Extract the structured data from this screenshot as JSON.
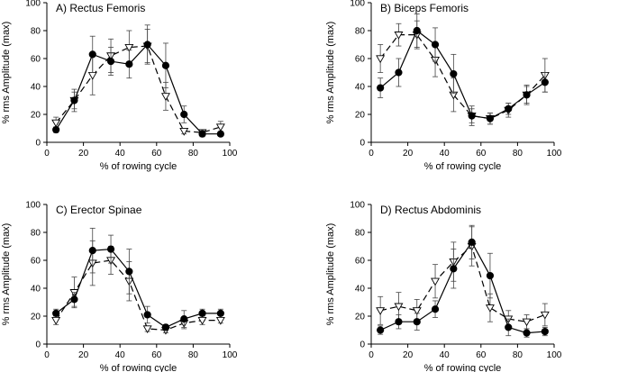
{
  "chart_data": [
    {
      "type": "line",
      "title": "A)  Rectus Femoris",
      "xlabel": "% of rowing cycle",
      "ylabel": "% rms Amplitude (max)",
      "xlim": [
        0,
        100
      ],
      "ylim": [
        0,
        100
      ],
      "xticks": [
        0,
        20,
        40,
        60,
        80,
        100
      ],
      "yticks": [
        0,
        20,
        40,
        60,
        80,
        100
      ],
      "x": [
        5,
        15,
        25,
        35,
        45,
        55,
        65,
        75,
        85,
        95
      ],
      "series": [
        {
          "marker": "filled-circle",
          "line_style": "solid",
          "values": [
            9,
            30,
            63,
            58,
            56,
            70,
            55,
            20,
            6,
            6
          ],
          "errors": [
            2,
            6,
            13,
            10,
            10,
            14,
            16,
            6,
            2,
            1
          ]
        },
        {
          "marker": "open-triangle-down",
          "line_style": "dashed",
          "values": [
            14,
            30,
            48,
            62,
            68,
            69,
            33,
            8,
            7,
            11
          ],
          "errors": [
            4,
            8,
            14,
            12,
            12,
            12,
            10,
            2,
            2,
            4
          ]
        }
      ]
    },
    {
      "type": "line",
      "title": "B)  Biceps Femoris",
      "xlabel": "% of rowing cycle",
      "ylabel": "% rms Amplitude (max)",
      "xlim": [
        0,
        100
      ],
      "ylim": [
        0,
        100
      ],
      "xticks": [
        0,
        20,
        40,
        60,
        80,
        100
      ],
      "yticks": [
        0,
        20,
        40,
        60,
        80,
        100
      ],
      "x": [
        5,
        15,
        25,
        35,
        45,
        55,
        65,
        75,
        85,
        95
      ],
      "series": [
        {
          "marker": "filled-circle",
          "line_style": "solid",
          "values": [
            39,
            50,
            80,
            70,
            49,
            19,
            17,
            24,
            34,
            43
          ],
          "errors": [
            7,
            10,
            12,
            12,
            14,
            5,
            4,
            4,
            6,
            7
          ]
        },
        {
          "marker": "open-triangle-down",
          "line_style": "dashed",
          "values": [
            60,
            77,
            77,
            59,
            34,
            19,
            17,
            23,
            34,
            48
          ],
          "errors": [
            10,
            8,
            10,
            12,
            12,
            7,
            4,
            5,
            7,
            12
          ]
        }
      ]
    },
    {
      "type": "line",
      "title": "C)  Erector Spinae",
      "xlabel": "% of rowing cycle",
      "ylabel": "% rms Amplitude (max)",
      "xlim": [
        0,
        100
      ],
      "ylim": [
        0,
        100
      ],
      "xticks": [
        0,
        20,
        40,
        60,
        80,
        100
      ],
      "yticks": [
        0,
        20,
        40,
        60,
        80,
        100
      ],
      "x": [
        5,
        15,
        25,
        35,
        45,
        55,
        65,
        75,
        85,
        95
      ],
      "series": [
        {
          "marker": "filled-circle",
          "line_style": "solid",
          "values": [
            22,
            32,
            67,
            68,
            52,
            21,
            12,
            18,
            22,
            22
          ],
          "errors": [
            3,
            5,
            16,
            10,
            16,
            6,
            2,
            6,
            3,
            3
          ]
        },
        {
          "marker": "open-triangle-down",
          "line_style": "dashed",
          "values": [
            17,
            37,
            58,
            60,
            45,
            11,
            10,
            15,
            17,
            17
          ],
          "errors": [
            3,
            11,
            16,
            10,
            14,
            2,
            2,
            4,
            3,
            2
          ]
        }
      ]
    },
    {
      "type": "line",
      "title": "D)  Rectus Abdominis",
      "xlabel": "% of rowing cycle",
      "ylabel": "% rms Amplitude (max)",
      "xlim": [
        0,
        100
      ],
      "ylim": [
        0,
        100
      ],
      "xticks": [
        0,
        20,
        40,
        60,
        80,
        100
      ],
      "yticks": [
        0,
        20,
        40,
        60,
        80,
        100
      ],
      "x": [
        5,
        15,
        25,
        35,
        45,
        55,
        65,
        75,
        85,
        95
      ],
      "series": [
        {
          "marker": "filled-circle",
          "line_style": "solid",
          "values": [
            10,
            16,
            16,
            25,
            54,
            73,
            49,
            12,
            8,
            9
          ],
          "errors": [
            3,
            5,
            6,
            6,
            14,
            12,
            16,
            6,
            3,
            3
          ]
        },
        {
          "marker": "open-triangle-down",
          "line_style": "dashed",
          "values": [
            24,
            27,
            24,
            45,
            59,
            70,
            26,
            18,
            16,
            21
          ],
          "errors": [
            10,
            10,
            8,
            12,
            14,
            14,
            10,
            6,
            5,
            8
          ]
        }
      ]
    }
  ]
}
